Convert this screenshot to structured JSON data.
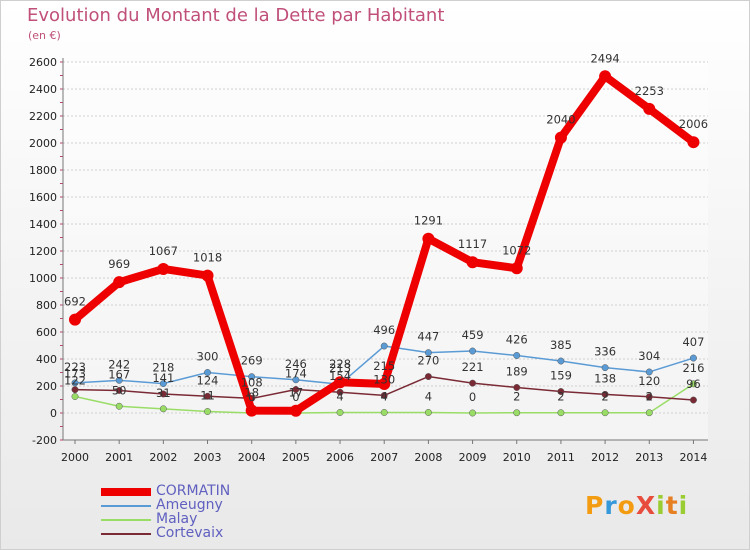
{
  "chart_data": {
    "type": "line",
    "title": "Evolution du Montant de la Dette par Habitant",
    "subtitle": "(en €)",
    "x": [
      "2000",
      "2001",
      "2002",
      "2003",
      "2004",
      "2005",
      "2006",
      "2007",
      "2008",
      "2009",
      "2010",
      "2011",
      "2012",
      "2013",
      "2014"
    ],
    "ylim": [
      -200,
      2600
    ],
    "yticks": [
      -200,
      0,
      200,
      400,
      600,
      800,
      1000,
      1200,
      1400,
      1600,
      1800,
      2000,
      2200,
      2400,
      2600
    ],
    "grid": "horizontal",
    "legend_position": "bottom-left",
    "series": [
      {
        "name": "CORMATIN",
        "color": "#ee0000",
        "values": [
          692,
          969,
          1067,
          1018,
          18,
          17,
          228,
          215,
          1291,
          1117,
          1072,
          2040,
          2494,
          2253,
          2006
        ],
        "labels": [
          "692",
          "969",
          "1067",
          "1018",
          "18",
          "17",
          "228",
          "215",
          "1291",
          "1117",
          "1072",
          "2040",
          "2494",
          "2253",
          "2006"
        ]
      },
      {
        "name": "Ameugny",
        "color": "#5b9bd5",
        "values": [
          223,
          242,
          218,
          300,
          269,
          246,
          213,
          496,
          447,
          459,
          426,
          385,
          336,
          304,
          407
        ],
        "labels": [
          "223",
          "242",
          "218",
          "300",
          "269",
          "246",
          "213",
          "496",
          "447",
          "459",
          "426",
          "385",
          "336",
          "304",
          "407"
        ]
      },
      {
        "name": "Malay",
        "color": "#99dd66",
        "values": [
          122,
          50,
          31,
          11,
          0,
          0,
          4,
          4,
          4,
          0,
          2,
          2,
          2,
          2,
          216
        ],
        "labels": [
          "122",
          "50",
          "31",
          "11",
          "0",
          "0",
          "4",
          "4",
          "4",
          "0",
          "2",
          "2",
          "2",
          "2",
          "216"
        ]
      },
      {
        "name": "Cortevaix",
        "color": "#7a2a35",
        "values": [
          173,
          167,
          141,
          124,
          108,
          174,
          154,
          130,
          270,
          221,
          189,
          159,
          138,
          120,
          96
        ],
        "labels": [
          "173",
          "167",
          "141",
          "124",
          "108",
          "174",
          "154",
          "130",
          "270",
          "221",
          "189",
          "159",
          "138",
          "120",
          "96"
        ]
      }
    ]
  },
  "logo": {
    "text": "ProXiti",
    "letters": [
      "P",
      "r",
      "o",
      "X",
      "i",
      "t",
      "i"
    ],
    "colors": [
      "#f39c12",
      "#3498db",
      "#f39c12",
      "#e74c3c",
      "#9acd32",
      "#e67e22",
      "#9acd32"
    ]
  }
}
